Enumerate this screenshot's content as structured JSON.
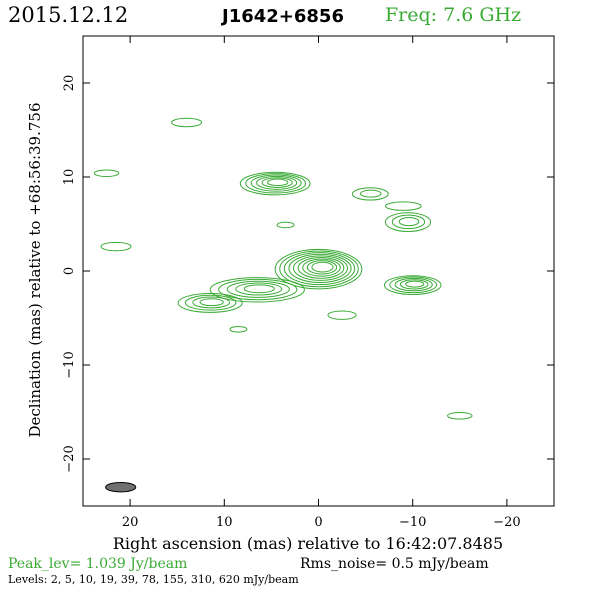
{
  "header": {
    "date": "2015.12.12",
    "source": "J1642+6856",
    "freq": "Freq: 7.6 GHz"
  },
  "chart_data": {
    "type": "contour",
    "xlabel": "Right ascension (mas) relative to 16:42:07.8485",
    "ylabel": "Declination (mas) relative to +68:56:39.756",
    "xlim": [
      25,
      -25
    ],
    "ylim": [
      -25,
      25
    ],
    "xticks": [
      20,
      10,
      0,
      -10,
      -20
    ],
    "xticklabels": [
      "20",
      "10",
      "0",
      "−10",
      "−20"
    ],
    "yticks": [
      20,
      10,
      0,
      -10,
      -20
    ],
    "yticklabels": [
      "20",
      "10",
      "0",
      "−10",
      "−20"
    ],
    "contour_color": "#3aaa35",
    "beam": {
      "x": 21,
      "y": -23,
      "major_mas": 3.2,
      "minor_mas": 1.0,
      "pa_deg": 93,
      "color": "#707070"
    },
    "components": [
      {
        "x": 0.0,
        "y": 0.2,
        "ra": 4.6,
        "rd": 2.1,
        "levels": 9
      },
      {
        "x": 4.6,
        "y": 9.3,
        "ra": 3.7,
        "rd": 1.2,
        "levels": 6
      },
      {
        "x": 6.5,
        "y": -2.0,
        "ra": 5.0,
        "rd": 1.3,
        "levels": 5
      },
      {
        "x": 11.5,
        "y": -3.4,
        "ra": 3.4,
        "rd": 1.0,
        "levels": 4
      },
      {
        "x": -10.0,
        "y": -1.5,
        "ra": 3.0,
        "rd": 1.0,
        "levels": 5
      },
      {
        "x": -9.5,
        "y": 5.2,
        "ra": 2.4,
        "rd": 1.0,
        "levels": 3
      },
      {
        "x": -5.5,
        "y": 8.2,
        "ra": 1.9,
        "rd": 0.65,
        "levels": 2
      },
      {
        "x": -9.0,
        "y": 6.9,
        "ra": 1.9,
        "rd": 0.45,
        "levels": 1
      },
      {
        "x": 14.0,
        "y": 15.8,
        "ra": 1.6,
        "rd": 0.45,
        "levels": 1
      },
      {
        "x": 22.5,
        "y": 10.4,
        "ra": 1.3,
        "rd": 0.35,
        "levels": 1
      },
      {
        "x": 21.5,
        "y": 2.6,
        "ra": 1.6,
        "rd": 0.45,
        "levels": 1
      },
      {
        "x": 3.5,
        "y": 4.9,
        "ra": 0.9,
        "rd": 0.3,
        "levels": 1
      },
      {
        "x": 8.5,
        "y": -6.2,
        "ra": 0.9,
        "rd": 0.3,
        "levels": 1
      },
      {
        "x": -2.5,
        "y": -4.7,
        "ra": 1.5,
        "rd": 0.45,
        "levels": 1
      },
      {
        "x": -15.0,
        "y": -15.4,
        "ra": 1.3,
        "rd": 0.35,
        "levels": 1
      }
    ]
  },
  "footer": {
    "peak": "Peak_lev=  1.039 Jy/beam",
    "rms": "Rms_noise=  0.5 mJy/beam",
    "levels": "Levels:   2,   5,  10,  19,  39,  78,  155,  310,  620  mJy/beam"
  }
}
